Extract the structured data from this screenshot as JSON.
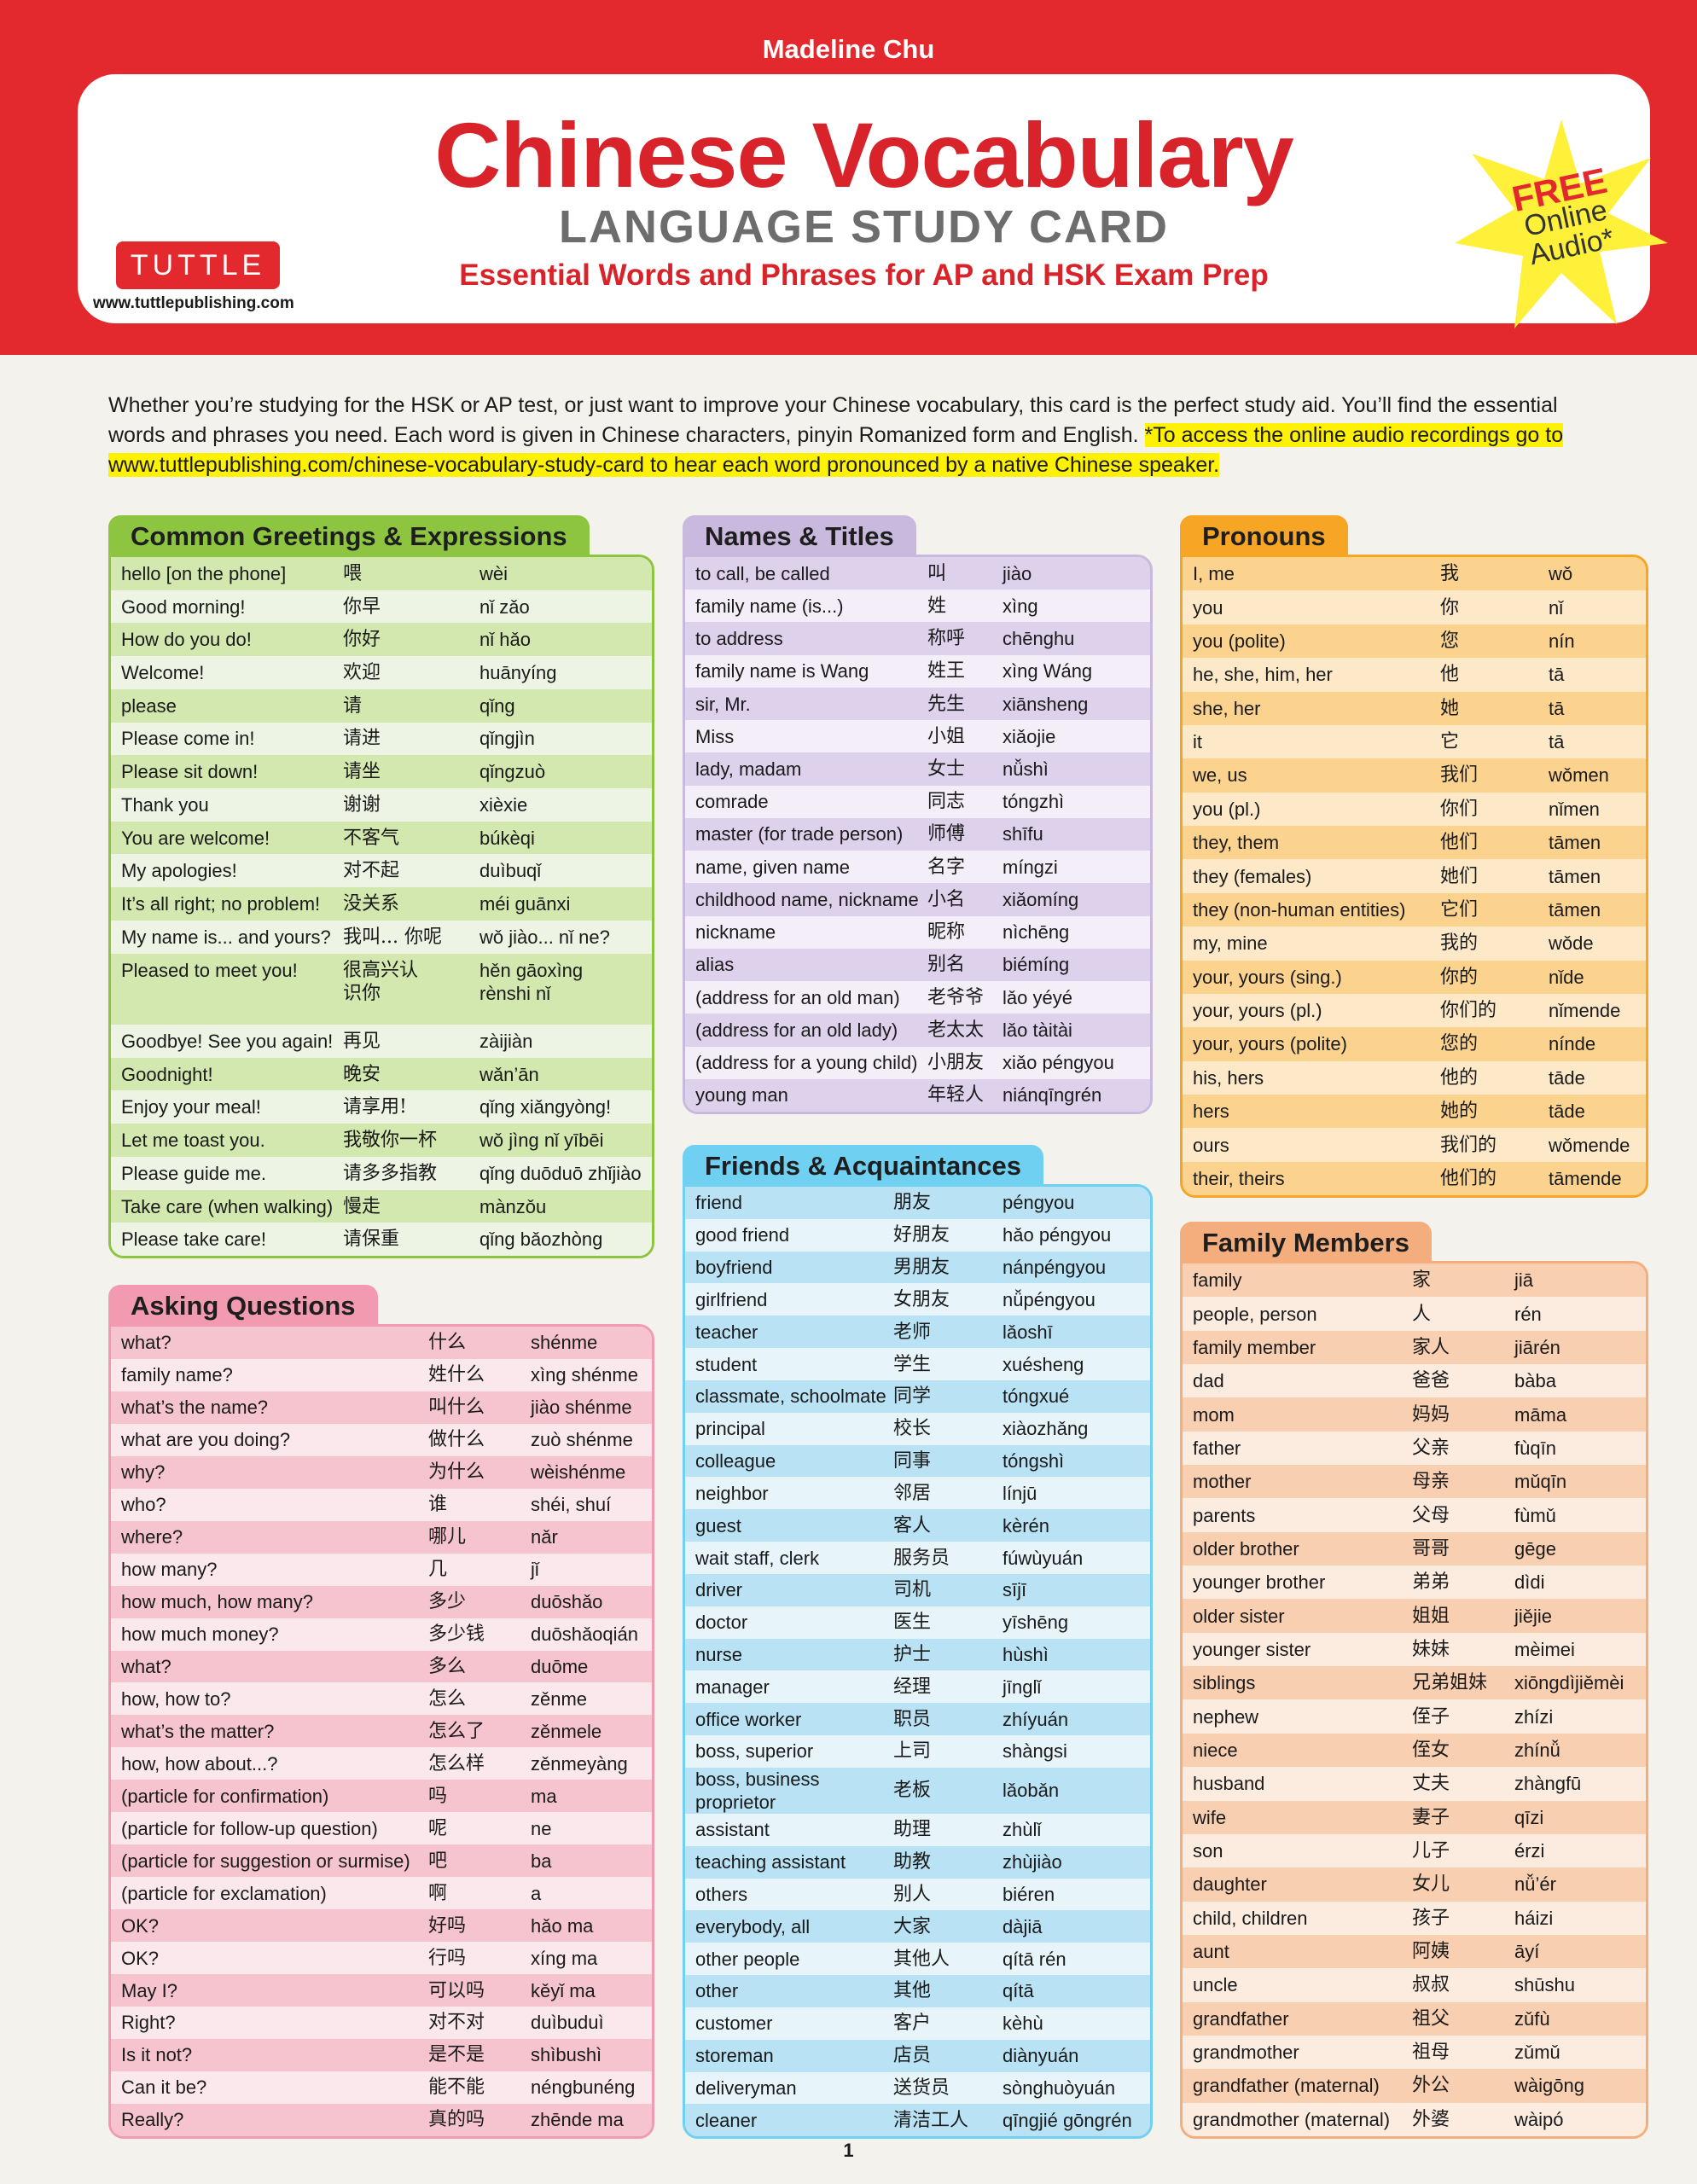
{
  "header": {
    "author": "Madeline Chu",
    "title": "Chinese Vocabulary",
    "subtitle": "LANGUAGE STUDY CARD",
    "tagline": "Essential Words and Phrases for AP and HSK Exam Prep",
    "publisher": "TUTTLE",
    "website": "www.tuttlepublishing.com",
    "badge": {
      "free": "FREE",
      "line1": "Online",
      "line2": "Audio*"
    }
  },
  "intro": {
    "text": "Whether you’re studying for the HSK or AP test, or just want to improve your Chinese vocabulary, this card is the perfect study aid. You’ll find the essential words and phrases you need. Each word is given in Chinese characters, pinyin Romanized form and English. ",
    "highlight": "*To access the online audio recordings go to www.tuttlepublishing.com/chinese-vocabulary-study-card to hear each word pronounced by a native Chinese speaker."
  },
  "sections": [
    {
      "id": "greetings",
      "title": "Common Greetings & Expressions",
      "colors": {
        "head": "#8dc540",
        "a": "#d3e8ae",
        "b": "#edf4e3"
      },
      "rows": [
        [
          "hello [on the phone]",
          "喂",
          "wèi"
        ],
        [
          "Good morning!",
          "你早",
          "nǐ zǎo"
        ],
        [
          "How do you do!",
          "你好",
          "nǐ hǎo"
        ],
        [
          "Welcome!",
          "欢迎",
          "huānyíng"
        ],
        [
          "please",
          "请",
          "qǐng"
        ],
        [
          "Please come in!",
          "请进",
          "qǐngjìn"
        ],
        [
          "Please sit down!",
          "请坐",
          "qǐngzuò"
        ],
        [
          "Thank you",
          "谢谢",
          "xièxie"
        ],
        [
          "You are welcome!",
          "不客气",
          "búkèqi"
        ],
        [
          "My apologies!",
          "对不起",
          "duìbuqǐ"
        ],
        [
          "It’s all right; no problem!",
          "没关系",
          "méi guānxi"
        ],
        [
          "My name is... and yours?",
          "我叫... 你呢",
          "wǒ jiào... nǐ ne?"
        ],
        [
          "Pleased to meet you!",
          "很高兴认\n 识你",
          "hěn gāoxìng\n rènshi nǐ"
        ],
        [
          "Goodbye! See you again!",
          "再见",
          "zàijiàn"
        ],
        [
          "Goodnight!",
          "晚安",
          "wǎn’ān"
        ],
        [
          "Enjoy your meal!",
          "请享用!",
          "qǐng xiǎngyòng!"
        ],
        [
          "Let me toast you.",
          "我敬你一杯",
          "wǒ jìng nǐ yībēi"
        ],
        [
          "Please guide me.",
          "请多多指教",
          "qǐng duōduō zhǐjiào"
        ],
        [
          "Take care (when walking)",
          "慢走",
          "mànzǒu"
        ],
        [
          "Please take care!",
          "请保重",
          "qǐng bǎozhòng"
        ]
      ]
    },
    {
      "id": "questions",
      "title": "Asking Questions",
      "colors": {
        "head": "#f29bb0",
        "a": "#f5c4cf",
        "b": "#fbe8ec"
      },
      "rows": [
        [
          "what?",
          "什么",
          "shénme"
        ],
        [
          "family name?",
          "姓什么",
          "xìng shénme"
        ],
        [
          "what’s the name?",
          "叫什么",
          "jiào shénme"
        ],
        [
          "what are you doing?",
          "做什么",
          "zuò shénme"
        ],
        [
          "why?",
          "为什么",
          "wèishénme"
        ],
        [
          "who?",
          "谁",
          "shéi, shuí"
        ],
        [
          "where?",
          "哪儿",
          "nǎr"
        ],
        [
          "how many?",
          "几",
          "jǐ"
        ],
        [
          "how much, how many?",
          "多少",
          "duōshǎo"
        ],
        [
          "how much money?",
          "多少钱",
          "duōshǎoqián"
        ],
        [
          "what?",
          "多么",
          "duōme"
        ],
        [
          "how, how to?",
          "怎么",
          "zěnme"
        ],
        [
          "what’s the matter?",
          "怎么了",
          "zěnmele"
        ],
        [
          "how, how about...?",
          "怎么样",
          "zěnmeyàng"
        ],
        [
          "(particle for confirmation)",
          "吗",
          "ma"
        ],
        [
          "(particle for follow-up question)",
          "呢",
          "ne"
        ],
        [
          "(particle for suggestion or surmise)",
          "吧",
          "ba"
        ],
        [
          "(particle for exclamation)",
          "啊",
          "a"
        ],
        [
          "OK?",
          "好吗",
          "hǎo ma"
        ],
        [
          "OK?",
          "行吗",
          "xíng ma"
        ],
        [
          "May I?",
          "可以吗",
          "kěyǐ ma"
        ],
        [
          "Right?",
          "对不对",
          "duìbuduì"
        ],
        [
          "Is it not?",
          "是不是",
          "shìbushì"
        ],
        [
          "Can it be?",
          "能不能",
          "néngbunéng"
        ],
        [
          "Really?",
          "真的吗",
          "zhēnde ma"
        ]
      ]
    },
    {
      "id": "names",
      "title": "Names & Titles",
      "colors": {
        "head": "#c9b9de",
        "a": "#ddd1eb",
        "b": "#f3eef7"
      },
      "rows": [
        [
          "to call, be called",
          "叫",
          "jiào"
        ],
        [
          "family name (is...)",
          "姓",
          "xìng"
        ],
        [
          "to address",
          "称呼",
          "chēnghu"
        ],
        [
          "family name is Wang",
          "姓王",
          "xìng Wáng"
        ],
        [
          "sir, Mr.",
          "先生",
          "xiānsheng"
        ],
        [
          "Miss",
          "小姐",
          "xiǎojie"
        ],
        [
          "lady, madam",
          "女士",
          "nǚshì"
        ],
        [
          "comrade",
          "同志",
          "tóngzhì"
        ],
        [
          "master (for trade person)",
          "师傅",
          "shīfu"
        ],
        [
          "name, given name",
          "名字",
          "míngzi"
        ],
        [
          "childhood name, nickname",
          "小名",
          "xiǎomíng"
        ],
        [
          "nickname",
          "昵称",
          "nìchēng"
        ],
        [
          "alias",
          "别名",
          "biémíng"
        ],
        [
          "(address for an old man)",
          "老爷爷",
          "lǎo yéyé"
        ],
        [
          "(address for an old lady)",
          "老太太",
          "lǎo tàitài"
        ],
        [
          "(address for a young child)",
          "小朋友",
          "xiǎo péngyou"
        ],
        [
          "young man",
          "年轻人",
          "niánqīngrén"
        ]
      ]
    },
    {
      "id": "friends",
      "title": "Friends & Acquaintances",
      "colors": {
        "head": "#6fd0f1",
        "a": "#b9e3f5",
        "b": "#e7f5fb"
      },
      "rows": [
        [
          "friend",
          "朋友",
          "péngyou"
        ],
        [
          "good friend",
          "好朋友",
          "hǎo péngyou"
        ],
        [
          "boyfriend",
          "男朋友",
          "nánpéngyou"
        ],
        [
          "girlfriend",
          "女朋友",
          "nǚpéngyou"
        ],
        [
          "teacher",
          "老师",
          "lǎoshī"
        ],
        [
          "student",
          "学生",
          "xuésheng"
        ],
        [
          "classmate, schoolmate",
          "同学",
          "tóngxué"
        ],
        [
          "principal",
          "校长",
          "xiàozhǎng"
        ],
        [
          "colleague",
          "同事",
          "tóngshì"
        ],
        [
          "neighbor",
          "邻居",
          "línjū"
        ],
        [
          "guest",
          "客人",
          "kèrén"
        ],
        [
          "wait staff, clerk",
          "服务员",
          "fúwùyuán"
        ],
        [
          "driver",
          "司机",
          "sījī"
        ],
        [
          "doctor",
          "医生",
          "yīshēng"
        ],
        [
          "nurse",
          "护士",
          "hùshì"
        ],
        [
          "manager",
          "经理",
          "jīnglǐ"
        ],
        [
          "office worker",
          "职员",
          "zhíyuán"
        ],
        [
          "boss, superior",
          "上司",
          "shàngsi"
        ],
        [
          "boss, business proprietor",
          "老板",
          "lǎobǎn"
        ],
        [
          "assistant",
          "助理",
          "zhùlǐ"
        ],
        [
          "teaching assistant",
          "助教",
          "zhùjiào"
        ],
        [
          "others",
          "别人",
          "biéren"
        ],
        [
          "everybody, all",
          "大家",
          "dàjiā"
        ],
        [
          "other people",
          "其他人",
          "qítā rén"
        ],
        [
          "other",
          "其他",
          "qítā"
        ],
        [
          "customer",
          "客户",
          "kèhù"
        ],
        [
          "storeman",
          "店员",
          "diànyuán"
        ],
        [
          "deliveryman",
          "送货员",
          "sònghuòyuán"
        ],
        [
          "cleaner",
          "清洁工人",
          "qīngjié gōngrén"
        ]
      ]
    },
    {
      "id": "pronouns",
      "title": "Pronouns",
      "colors": {
        "head": "#f6a624",
        "a": "#fbd38e",
        "b": "#fde9c8"
      },
      "rows": [
        [
          "I, me",
          "我",
          "wǒ"
        ],
        [
          "you",
          "你",
          "nǐ"
        ],
        [
          "you (polite)",
          "您",
          "nín"
        ],
        [
          "he, she, him, her",
          "他",
          "tā"
        ],
        [
          "she, her",
          "她",
          "tā"
        ],
        [
          "it",
          "它",
          "tā"
        ],
        [
          "we, us",
          "我们",
          "wǒmen"
        ],
        [
          "you (pl.)",
          "你们",
          "nǐmen"
        ],
        [
          "they, them",
          "他们",
          "tāmen"
        ],
        [
          "they (females)",
          "她们",
          "tāmen"
        ],
        [
          "they (non-human entities)",
          "它们",
          "tāmen"
        ],
        [
          "my, mine",
          "我的",
          "wǒde"
        ],
        [
          "your, yours (sing.)",
          "你的",
          "nǐde"
        ],
        [
          "your, yours (pl.)",
          "你们的",
          "nǐmende"
        ],
        [
          "your, yours (polite)",
          "您的",
          "nínde"
        ],
        [
          "his, hers",
          "他的",
          "tāde"
        ],
        [
          "hers",
          "她的",
          "tāde"
        ],
        [
          "ours",
          "我们的",
          "wǒmende"
        ],
        [
          "their, theirs",
          "他们的",
          "tāmende"
        ]
      ]
    },
    {
      "id": "family",
      "title": "Family Members",
      "colors": {
        "head": "#f4ae7e",
        "a": "#f8cfb1",
        "b": "#fcebdf"
      },
      "rows": [
        [
          "family",
          "家",
          "jiā"
        ],
        [
          "people, person",
          "人",
          "rén"
        ],
        [
          "family member",
          "家人",
          "jiārén"
        ],
        [
          "dad",
          "爸爸",
          "bàba"
        ],
        [
          "mom",
          "妈妈",
          "māma"
        ],
        [
          "father",
          "父亲",
          "fùqīn"
        ],
        [
          "mother",
          "母亲",
          "mǔqīn"
        ],
        [
          "parents",
          "父母",
          "fùmǔ"
        ],
        [
          "older brother",
          "哥哥",
          "gēge"
        ],
        [
          "younger brother",
          "弟弟",
          "dìdi"
        ],
        [
          "older sister",
          "姐姐",
          "jiějie"
        ],
        [
          "younger sister",
          "妹妹",
          "mèimei"
        ],
        [
          "siblings",
          "兄弟姐妹",
          "xiōngdìjiěmèi"
        ],
        [
          "nephew",
          "侄子",
          "zhízi"
        ],
        [
          "niece",
          "侄女",
          "zhínǚ"
        ],
        [
          "husband",
          "丈夫",
          "zhàngfū"
        ],
        [
          "wife",
          "妻子",
          "qīzi"
        ],
        [
          "son",
          "儿子",
          "érzi"
        ],
        [
          "daughter",
          "女儿",
          "nǚ’ér"
        ],
        [
          "child, children",
          "孩子",
          "háizi"
        ],
        [
          "aunt",
          "阿姨",
          "āyí"
        ],
        [
          "uncle",
          "叔叔",
          "shūshu"
        ],
        [
          "grandfather",
          "祖父",
          "zǔfù"
        ],
        [
          "grandmother",
          "祖母",
          "zǔmǔ"
        ],
        [
          "grandfather (maternal)",
          "外公",
          "wàigōng"
        ],
        [
          "grandmother (maternal)",
          "外婆",
          "wàipó"
        ]
      ]
    }
  ],
  "footer": {
    "page": "1"
  }
}
